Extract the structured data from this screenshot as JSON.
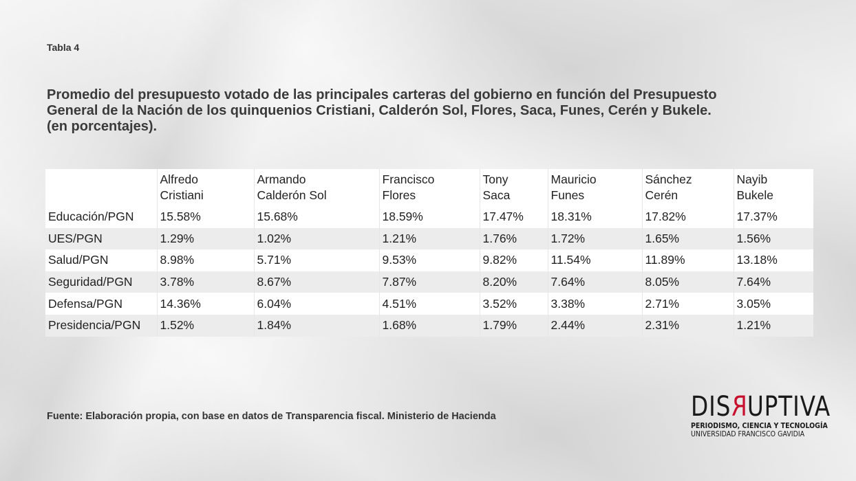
{
  "label": "Tabla 4",
  "title_lines": [
    "Promedio del presupuesto votado de las principales carteras del gobierno en función del Presupuesto",
    "General de la Nación de los quinquenios Cristiani, Calderón Sol, Flores, Saca, Funes, Cerén y Bukele.",
    "(en porcentajes)."
  ],
  "chart_data": {
    "type": "table",
    "columns": [
      {
        "line1": "",
        "line2": ""
      },
      {
        "line1": "Alfredo",
        "line2": "Cristiani"
      },
      {
        "line1": "Armando",
        "line2": "Calderón Sol"
      },
      {
        "line1": "Francisco",
        "line2": "Flores"
      },
      {
        "line1": "Tony",
        "line2": "Saca"
      },
      {
        "line1": "Mauricio",
        "line2": "Funes"
      },
      {
        "line1": "Sánchez",
        "line2": "Cerén"
      },
      {
        "line1": "Nayib",
        "line2": "Bukele"
      }
    ],
    "rows": [
      [
        "Educación/PGN",
        "15.58%",
        "15.68%",
        "18.59%",
        "17.47%",
        "18.31%",
        "17.82%",
        "17.37%"
      ],
      [
        "UES/PGN",
        "1.29%",
        "1.02%",
        "1.21%",
        "1.76%",
        "1.72%",
        "1.65%",
        "1.56%"
      ],
      [
        "Salud/PGN",
        "8.98%",
        "5.71%",
        "9.53%",
        "9.82%",
        "11.54%",
        "11.89%",
        "13.18%"
      ],
      [
        "Seguridad/PGN",
        "3.78%",
        "8.67%",
        "7.87%",
        "8.20%",
        "7.64%",
        "8.05%",
        "7.64%"
      ],
      [
        "Defensa/PGN",
        "14.36%",
        "6.04%",
        "4.51%",
        "3.52%",
        "3.38%",
        "2.71%",
        "3.05%"
      ],
      [
        "Presidencia/PGN",
        "1.52%",
        "1.84%",
        "1.68%",
        "1.79%",
        "2.44%",
        "2.31%",
        "1.21%"
      ]
    ]
  },
  "source": "Fuente: Elaboración propia, con base en datos de Transparencia fiscal. Ministerio de Hacienda",
  "logo": {
    "part1": "DIS",
    "part_r": "R",
    "part2": "UPTIVA",
    "sub1": "PERIODISMO, CIENCIA Y TECNOLOGÍA",
    "sub2": "UNIVERSIDAD FRANCISCO GAVIDIA",
    "accent_color": "#c8102e"
  }
}
